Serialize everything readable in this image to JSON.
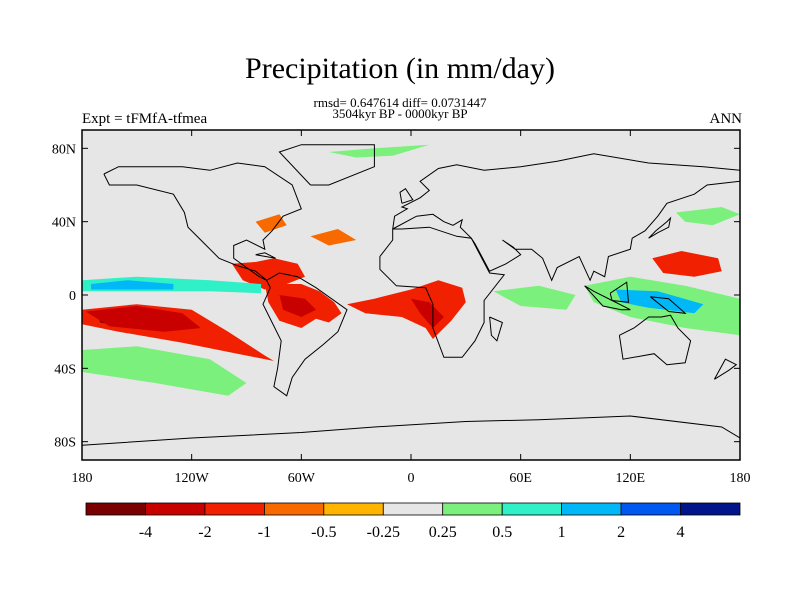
{
  "title": "Precipitation (in mm/day)",
  "stats": "rmsd= 0.647614 diff= 0.0731447",
  "period": "3504kyr BP - 0000kyr BP",
  "left_label": "Expt = tFMfA-tfmea",
  "right_label": "ANN",
  "chart_data": {
    "type": "heatmap",
    "xlim": [
      -180,
      180
    ],
    "ylim": [
      -90,
      90
    ],
    "x_ticks": [
      {
        "value": -180,
        "label": "180"
      },
      {
        "value": -120,
        "label": "120W"
      },
      {
        "value": -60,
        "label": "60W"
      },
      {
        "value": 0,
        "label": "0"
      },
      {
        "value": 60,
        "label": "60E"
      },
      {
        "value": 120,
        "label": "120E"
      },
      {
        "value": 180,
        "label": "180"
      }
    ],
    "y_ticks": [
      {
        "value": 80,
        "label": "80N"
      },
      {
        "value": 40,
        "label": "40N"
      },
      {
        "value": 0,
        "label": "0"
      },
      {
        "value": -40,
        "label": "40S"
      },
      {
        "value": -80,
        "label": "80S"
      }
    ],
    "background_color": "#e6e6e6",
    "colorbar": {
      "colors": [
        "#7a0000",
        "#c80000",
        "#f02000",
        "#f86a00",
        "#ffb400",
        "#e6e6e6",
        "#7cf07c",
        "#30f0c8",
        "#00b8f8",
        "#0058f0",
        "#00148c"
      ],
      "labels": [
        "-4",
        "-2",
        "-1",
        "-0.5",
        "-0.25",
        "0.25",
        "0.5",
        "1",
        "2",
        "4"
      ]
    },
    "regions": [
      {
        "name": "south-pacific-negative",
        "level": -1,
        "points": [
          [
            -180,
            -8
          ],
          [
            -150,
            -5
          ],
          [
            -120,
            -8
          ],
          [
            -100,
            -20
          ],
          [
            -80,
            -33
          ],
          [
            -75,
            -36
          ],
          [
            -95,
            -32
          ],
          [
            -125,
            -26
          ],
          [
            -160,
            -20
          ],
          [
            -180,
            -16
          ]
        ]
      },
      {
        "name": "south-pacific-core",
        "level": -4,
        "points": [
          [
            -172,
            -10
          ],
          [
            -155,
            -8
          ],
          [
            -140,
            -10
          ],
          [
            -138,
            -16
          ],
          [
            -152,
            -18
          ],
          [
            -170,
            -15
          ]
        ]
      },
      {
        "name": "south-pacific-strong",
        "level": -2,
        "points": [
          [
            -178,
            -9
          ],
          [
            -150,
            -6
          ],
          [
            -125,
            -10
          ],
          [
            -115,
            -18
          ],
          [
            -135,
            -20
          ],
          [
            -165,
            -17
          ]
        ]
      },
      {
        "name": "central-america-negative",
        "level": -1,
        "points": [
          [
            -98,
            17
          ],
          [
            -85,
            18
          ],
          [
            -75,
            20
          ],
          [
            -62,
            17
          ],
          [
            -58,
            10
          ],
          [
            -68,
            6
          ],
          [
            -80,
            3
          ],
          [
            -92,
            8
          ]
        ]
      },
      {
        "name": "amazon-negative",
        "level": -1,
        "points": [
          [
            -80,
            6
          ],
          [
            -60,
            6
          ],
          [
            -50,
            2
          ],
          [
            -42,
            -4
          ],
          [
            -38,
            -10
          ],
          [
            -45,
            -15
          ],
          [
            -52,
            -13
          ],
          [
            -60,
            -18
          ],
          [
            -72,
            -14
          ],
          [
            -78,
            -4
          ]
        ]
      },
      {
        "name": "amazon-strong",
        "level": -2,
        "points": [
          [
            -72,
            0
          ],
          [
            -58,
            -2
          ],
          [
            -52,
            -8
          ],
          [
            -60,
            -12
          ],
          [
            -70,
            -8
          ]
        ]
      },
      {
        "name": "africa-negative",
        "level": -1,
        "points": [
          [
            -35,
            -5
          ],
          [
            -20,
            -2
          ],
          [
            0,
            3
          ],
          [
            15,
            8
          ],
          [
            28,
            4
          ],
          [
            30,
            -4
          ],
          [
            22,
            -14
          ],
          [
            12,
            -24
          ],
          [
            8,
            -18
          ],
          [
            -5,
            -12
          ],
          [
            -25,
            -10
          ]
        ]
      },
      {
        "name": "africa-strong",
        "level": -2,
        "points": [
          [
            0,
            -2
          ],
          [
            10,
            -4
          ],
          [
            18,
            -12
          ],
          [
            12,
            -18
          ],
          [
            5,
            -10
          ]
        ]
      },
      {
        "name": "north-pacific-negative",
        "level": -1,
        "points": [
          [
            132,
            20
          ],
          [
            148,
            24
          ],
          [
            168,
            20
          ],
          [
            170,
            13
          ],
          [
            155,
            10
          ],
          [
            138,
            12
          ]
        ]
      },
      {
        "name": "eastern-us-negative",
        "level": -0.5,
        "points": [
          [
            -85,
            40
          ],
          [
            -72,
            44
          ],
          [
            -68,
            38
          ],
          [
            -80,
            34
          ]
        ]
      },
      {
        "name": "north-atlantic-negative",
        "level": -0.5,
        "points": [
          [
            -55,
            32
          ],
          [
            -40,
            36
          ],
          [
            -30,
            30
          ],
          [
            -45,
            27
          ]
        ]
      },
      {
        "name": "west-pacific-positive",
        "level": 0.5,
        "points": [
          [
            95,
            5
          ],
          [
            120,
            10
          ],
          [
            150,
            5
          ],
          [
            180,
            -2
          ],
          [
            180,
            -22
          ],
          [
            150,
            -18
          ],
          [
            120,
            -12
          ],
          [
            100,
            -4
          ]
        ]
      },
      {
        "name": "indonesia-positive",
        "level": 2,
        "points": [
          [
            112,
            3
          ],
          [
            135,
            2
          ],
          [
            160,
            -5
          ],
          [
            155,
            -10
          ],
          [
            130,
            -7
          ],
          [
            115,
            -4
          ]
        ]
      },
      {
        "name": "tropical-pacific-positive",
        "level": 1,
        "points": [
          [
            -180,
            8
          ],
          [
            -150,
            10
          ],
          [
            -110,
            8
          ],
          [
            -82,
            6
          ],
          [
            -82,
            1
          ],
          [
            -110,
            2
          ],
          [
            -150,
            2
          ],
          [
            -180,
            2
          ]
        ]
      },
      {
        "name": "tropical-pacific-core",
        "level": 2,
        "points": [
          [
            -175,
            6
          ],
          [
            -155,
            8
          ],
          [
            -130,
            6
          ],
          [
            -130,
            3
          ],
          [
            -155,
            3
          ],
          [
            -175,
            3
          ]
        ]
      },
      {
        "name": "southern-ocean-positive",
        "level": 0.5,
        "points": [
          [
            -180,
            -30
          ],
          [
            -150,
            -28
          ],
          [
            -110,
            -35
          ],
          [
            -90,
            -48
          ],
          [
            -100,
            -55
          ],
          [
            -140,
            -48
          ],
          [
            -180,
            -42
          ]
        ]
      },
      {
        "name": "arctic-positive",
        "level": 0.5,
        "points": [
          [
            -45,
            78
          ],
          [
            -20,
            80
          ],
          [
            10,
            82
          ],
          [
            -10,
            76
          ],
          [
            -30,
            75
          ]
        ]
      },
      {
        "name": "north-pacific-high-positive",
        "level": 0.5,
        "points": [
          [
            145,
            45
          ],
          [
            170,
            48
          ],
          [
            180,
            44
          ],
          [
            165,
            38
          ],
          [
            150,
            40
          ]
        ]
      },
      {
        "name": "indian-ocean-positive",
        "level": 0.5,
        "points": [
          [
            45,
            2
          ],
          [
            70,
            5
          ],
          [
            90,
            0
          ],
          [
            85,
            -8
          ],
          [
            60,
            -6
          ]
        ]
      }
    ]
  }
}
